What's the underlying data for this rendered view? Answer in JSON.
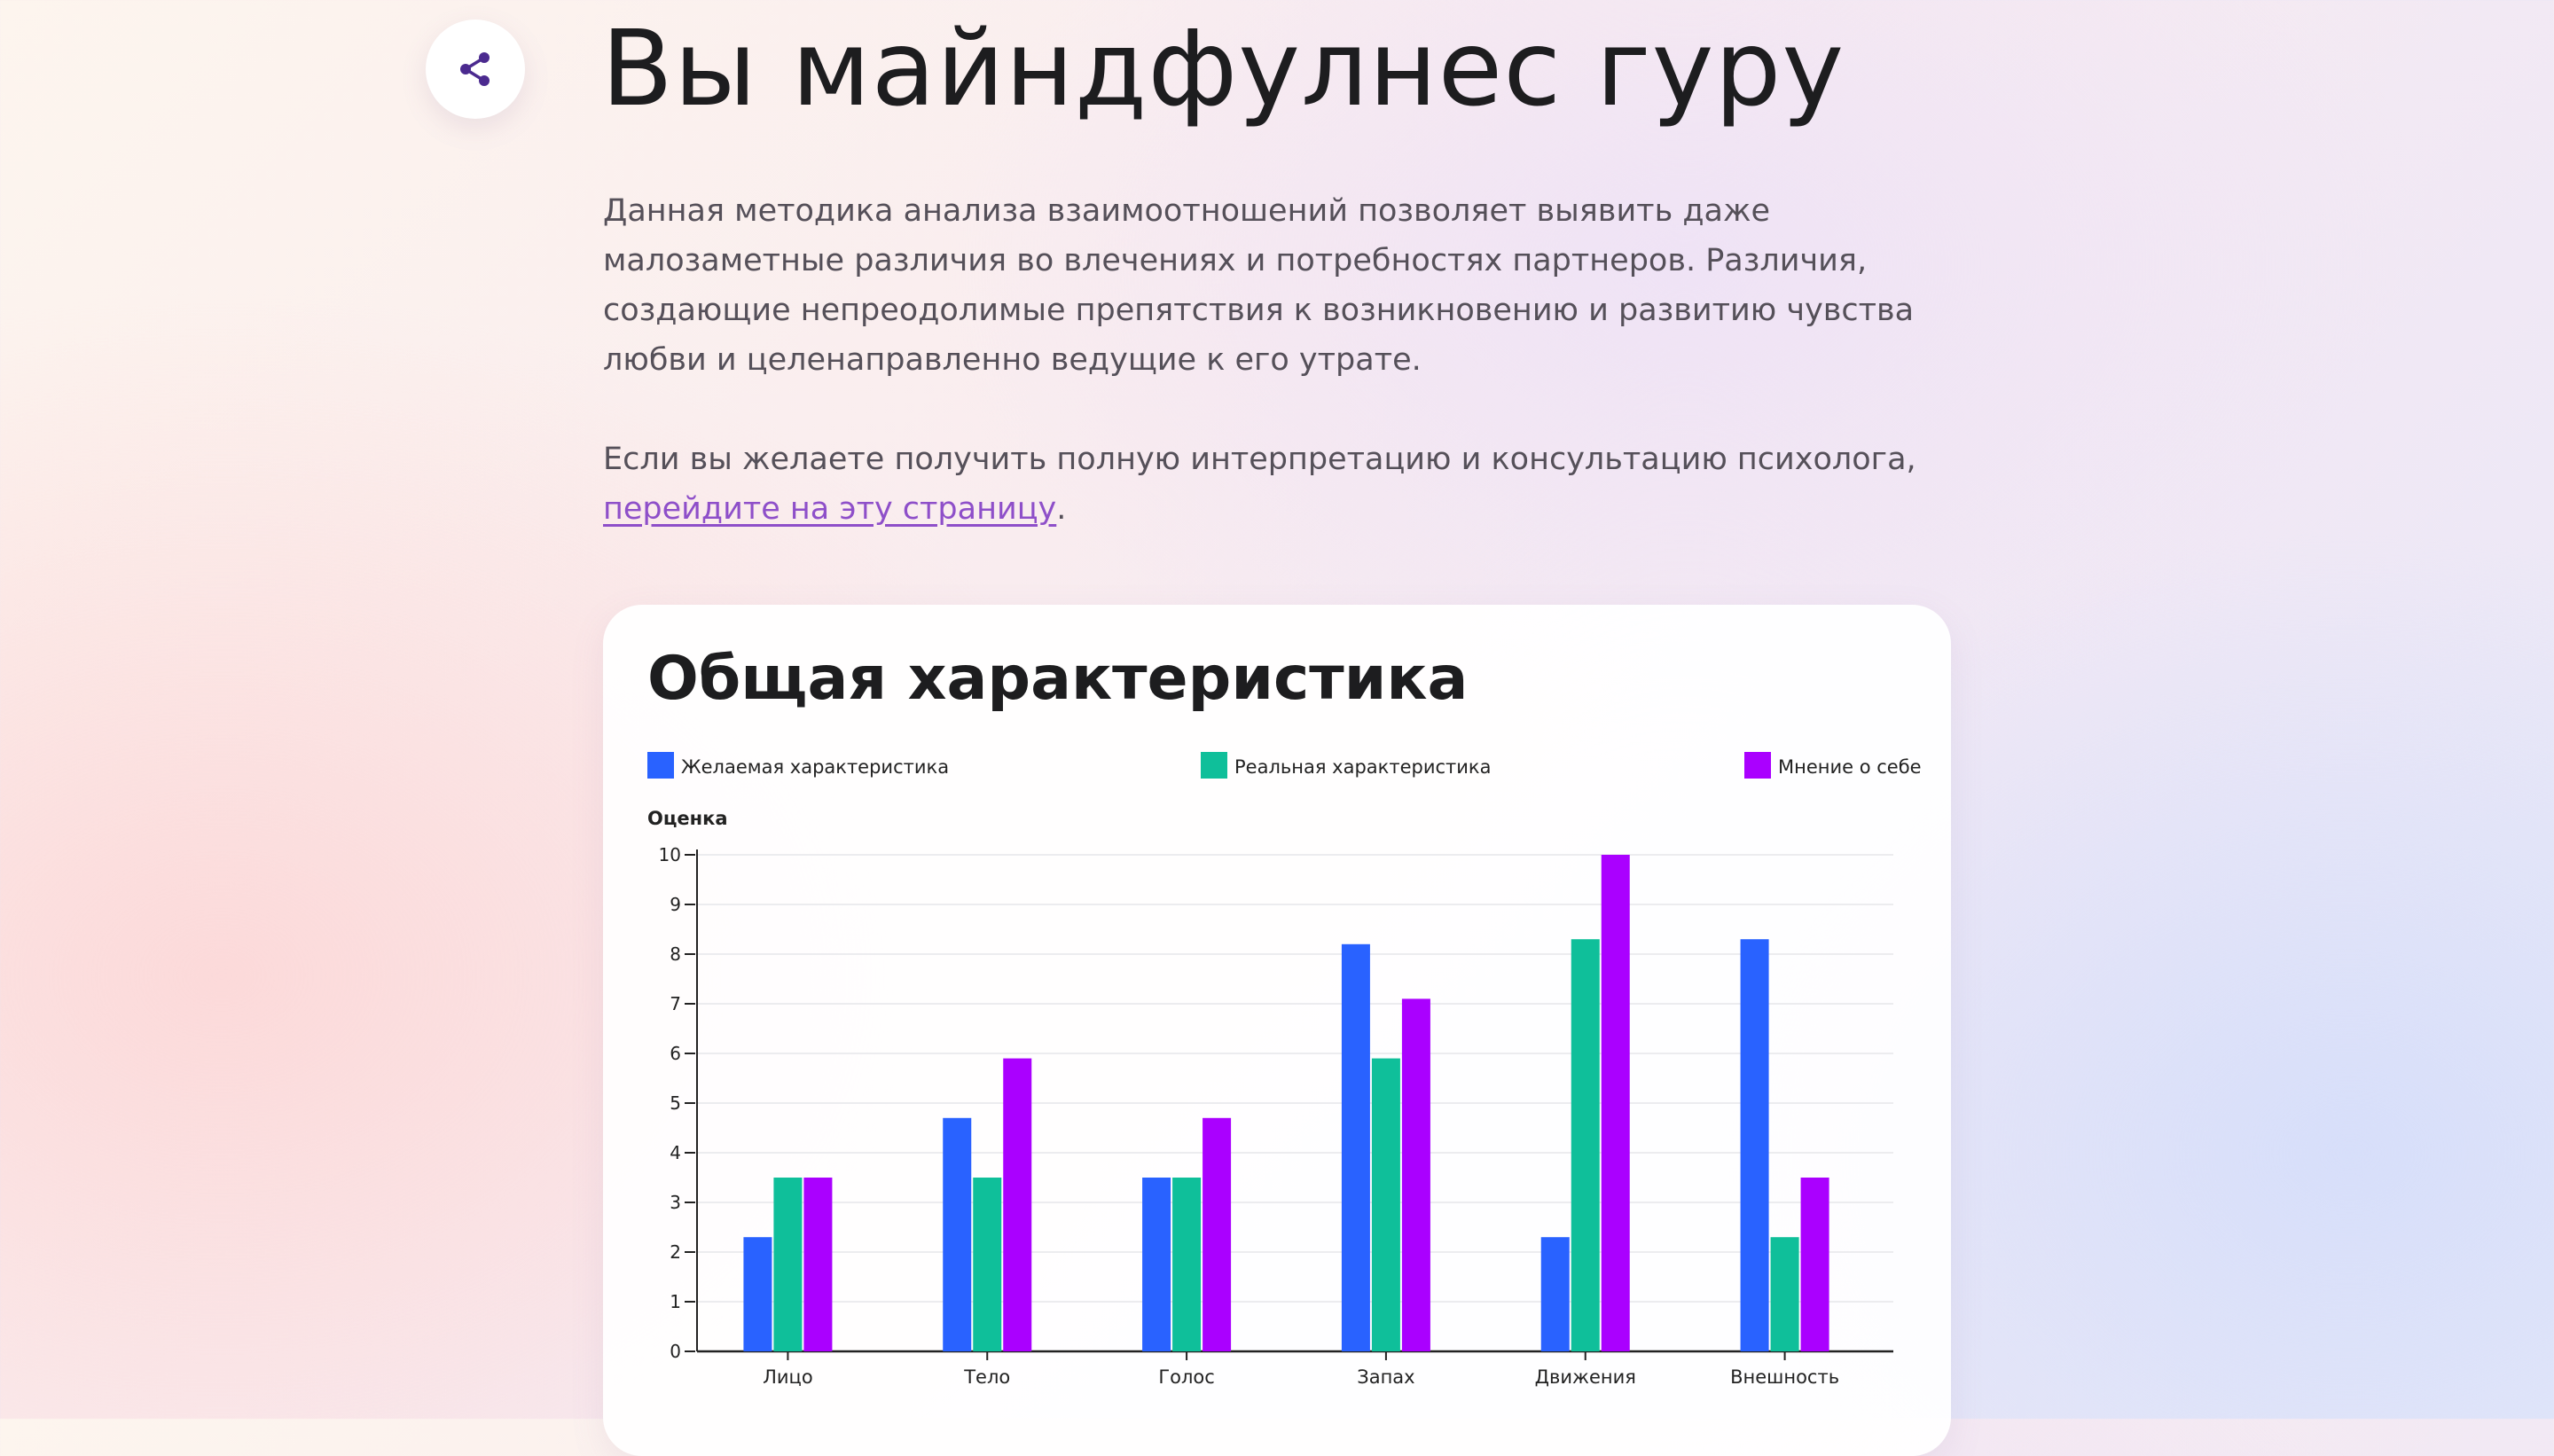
{
  "page": {
    "title": "Вы майндфулнес гуру",
    "paragraph1": "Данная методика анализа взаимоотношений  позволяет выявить даже малозаметные различия во влечениях и потребностях партнеров. Различия, создающие непреодолимые препятствия к возникновению и развитию  чувства любви и целенаправленно ведущие к его утрате.",
    "paragraph2": "Если вы желаете получить полную интерпретацию и консультацию психолога,",
    "link_text": "перейдите на эту страницу",
    "link_suffix": ".",
    "share_icon": "share-icon"
  },
  "card": {
    "title": "Общая характеристика"
  },
  "colors": {
    "desired": "#2962ff",
    "real": "#0fbf9a",
    "self": "#aa00ff",
    "link": "#8e4fc9"
  },
  "chart_data": {
    "type": "bar",
    "title": "Общая характеристика",
    "xlabel": "",
    "ylabel": "Оценка",
    "ylim": [
      0,
      10
    ],
    "yticks": [
      0,
      1,
      2,
      3,
      4,
      5,
      6,
      7,
      8,
      9,
      10
    ],
    "grid": true,
    "legend_position": "top",
    "categories": [
      "Лицо",
      "Тело",
      "Голос",
      "Запах",
      "Движения",
      "Внешность"
    ],
    "series": [
      {
        "name": "Желаемая характеристика",
        "color": "#2962ff",
        "values": [
          2.3,
          4.7,
          3.5,
          8.2,
          2.3,
          8.3
        ]
      },
      {
        "name": "Реальная характеристика",
        "color": "#0fbf9a",
        "values": [
          3.5,
          3.5,
          3.5,
          5.9,
          8.3,
          2.3
        ]
      },
      {
        "name": "Мнение о себе",
        "color": "#aa00ff",
        "values": [
          3.5,
          5.9,
          4.7,
          7.1,
          10,
          3.5
        ]
      }
    ]
  }
}
